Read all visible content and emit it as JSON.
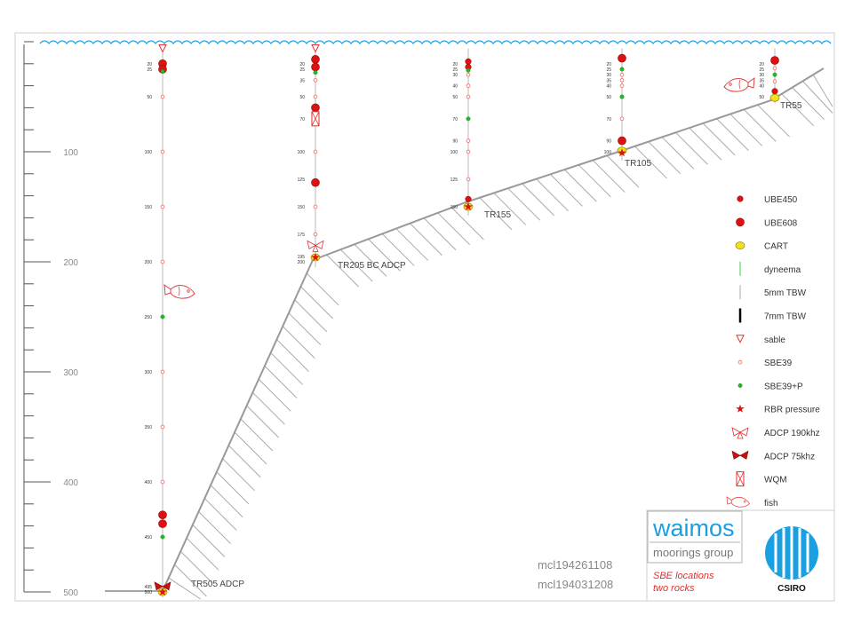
{
  "depth_axis": {
    "labels": [
      {
        "depth": 100,
        "text": "100"
      },
      {
        "depth": 200,
        "text": "200"
      },
      {
        "depth": 300,
        "text": "300"
      },
      {
        "depth": 400,
        "text": "400"
      },
      {
        "depth": 500,
        "text": "500"
      }
    ]
  },
  "stations": [
    {
      "name": "TR505 ADCP",
      "bottom": 505,
      "labels": [
        "20",
        "25",
        "50",
        "100",
        "150",
        "200",
        "250",
        "300",
        "350",
        "400",
        "450",
        "495",
        "500"
      ],
      "instruments": [
        {
          "type": "sable",
          "depth": 6
        },
        {
          "type": "ube608",
          "depth": 20
        },
        {
          "type": "ube608",
          "depth": 25
        },
        {
          "type": "sbe39p",
          "depth": 27
        },
        {
          "type": "sbe39",
          "depth": 50
        },
        {
          "type": "sbe39",
          "depth": 100
        },
        {
          "type": "sbe39",
          "depth": 150
        },
        {
          "type": "sbe39",
          "depth": 200
        },
        {
          "type": "sbe39p",
          "depth": 250
        },
        {
          "type": "sbe39",
          "depth": 300
        },
        {
          "type": "sbe39",
          "depth": 350
        },
        {
          "type": "sbe39",
          "depth": 400
        },
        {
          "type": "ube608",
          "depth": 430
        },
        {
          "type": "ube608",
          "depth": 438
        },
        {
          "type": "sbe39p",
          "depth": 450
        },
        {
          "type": "adcp75",
          "depth": 495
        },
        {
          "type": "cart",
          "depth": 500
        },
        {
          "type": "rbr",
          "depth": 500
        }
      ]
    },
    {
      "name": "TR205 BC ADCP",
      "bottom": 205,
      "labels": [
        "20",
        "25",
        "35",
        "50",
        "70",
        "100",
        "125",
        "150",
        "175",
        "195",
        "200"
      ],
      "instruments": [
        {
          "type": "sable",
          "depth": 6
        },
        {
          "type": "ube608",
          "depth": 16
        },
        {
          "type": "ube608",
          "depth": 23
        },
        {
          "type": "sbe39p",
          "depth": 28
        },
        {
          "type": "sbe39",
          "depth": 35
        },
        {
          "type": "sbe39",
          "depth": 50
        },
        {
          "type": "ube608",
          "depth": 60
        },
        {
          "type": "wqm",
          "depth": 70
        },
        {
          "type": "sbe39",
          "depth": 100
        },
        {
          "type": "ube608",
          "depth": 128
        },
        {
          "type": "sbe39",
          "depth": 150
        },
        {
          "type": "sbe39",
          "depth": 175
        },
        {
          "type": "adcp190",
          "depth": 185
        },
        {
          "type": "cart",
          "depth": 196
        },
        {
          "type": "rbr",
          "depth": 196
        }
      ]
    },
    {
      "name": "TR155",
      "bottom": 158,
      "labels": [
        "20",
        "25",
        "30",
        "40",
        "50",
        "70",
        "90",
        "100",
        "125",
        "150"
      ],
      "instruments": [
        {
          "type": "ube450",
          "depth": 18
        },
        {
          "type": "ube450",
          "depth": 23
        },
        {
          "type": "sbe39p",
          "depth": 26
        },
        {
          "type": "sbe39",
          "depth": 30
        },
        {
          "type": "sbe39",
          "depth": 40
        },
        {
          "type": "sbe39",
          "depth": 50
        },
        {
          "type": "sbe39p",
          "depth": 70
        },
        {
          "type": "sbe39",
          "depth": 90
        },
        {
          "type": "sbe39",
          "depth": 100
        },
        {
          "type": "sbe39",
          "depth": 125
        },
        {
          "type": "ube450",
          "depth": 143
        },
        {
          "type": "cart",
          "depth": 150
        },
        {
          "type": "rbr",
          "depth": 150
        }
      ]
    },
    {
      "name": "TR105",
      "bottom": 108,
      "labels": [
        "20",
        "25",
        "30",
        "35",
        "40",
        "50",
        "70",
        "90",
        "100"
      ],
      "instruments": [
        {
          "type": "ube608",
          "depth": 15
        },
        {
          "type": "sbe39p",
          "depth": 25
        },
        {
          "type": "sbe39",
          "depth": 30
        },
        {
          "type": "sbe39",
          "depth": 35
        },
        {
          "type": "sbe39",
          "depth": 40
        },
        {
          "type": "sbe39p",
          "depth": 50
        },
        {
          "type": "sbe39",
          "depth": 70
        },
        {
          "type": "ube608",
          "depth": 90
        },
        {
          "type": "cart",
          "depth": 99
        },
        {
          "type": "rbr",
          "depth": 101
        }
      ]
    },
    {
      "name": "TR55",
      "bottom": 56,
      "labels": [
        "20",
        "25",
        "30",
        "35",
        "40",
        "50"
      ],
      "instruments": [
        {
          "type": "ube608",
          "depth": 17
        },
        {
          "type": "sbe39",
          "depth": 24
        },
        {
          "type": "sbe39p",
          "depth": 30
        },
        {
          "type": "sbe39",
          "depth": 36
        },
        {
          "type": "ube450",
          "depth": 45
        },
        {
          "type": "cart",
          "depth": 51
        }
      ]
    }
  ],
  "legend": [
    {
      "type": "ube450",
      "label": "UBE450"
    },
    {
      "type": "ube608",
      "label": "UBE608"
    },
    {
      "type": "cart",
      "label": "CART"
    },
    {
      "type": "dyneema",
      "label": "dyneema"
    },
    {
      "type": "tbw5",
      "label": "5mm TBW"
    },
    {
      "type": "tbw7",
      "label": "7mm TBW"
    },
    {
      "type": "sable",
      "label": "sable"
    },
    {
      "type": "sbe39",
      "label": "SBE39"
    },
    {
      "type": "sbe39p",
      "label": "SBE39+P"
    },
    {
      "type": "rbr",
      "label": "RBR pressure"
    },
    {
      "type": "adcp190",
      "label": "ADCP 190khz"
    },
    {
      "type": "adcp75",
      "label": "ADCP  75khz"
    },
    {
      "type": "wqm",
      "label": "WQM"
    },
    {
      "type": "fish",
      "label": "fish"
    }
  ],
  "file_ids": [
    "mcl194261108",
    "mcl194031208"
  ],
  "notes": [
    "SBE locations",
    "two rocks"
  ],
  "logos": {
    "brand": "waimos",
    "subtitle": "moorings group",
    "org": "CSIRO"
  },
  "colors": {
    "water": "#1aa0e0",
    "ube": "#dd1111",
    "cart": "#f0e020",
    "sbe39p": "#22bb22",
    "sbe39": "#ee6666",
    "seabed": "#999999"
  }
}
